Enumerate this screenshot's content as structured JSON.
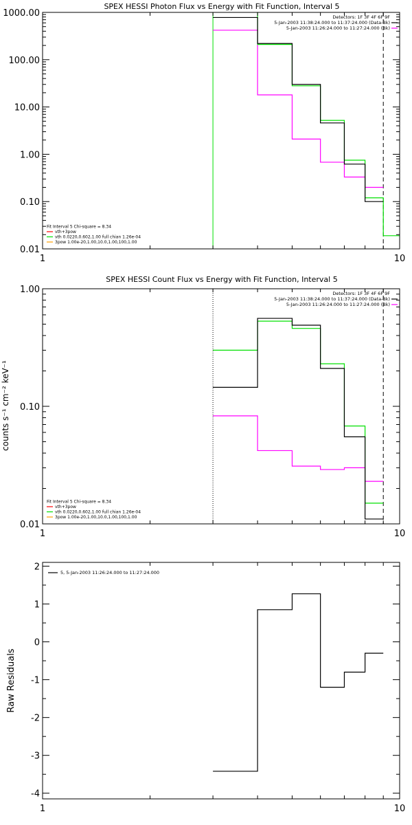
{
  "colors": {
    "black": "#000000",
    "magenta": "#ff00ff",
    "green": "#00e000",
    "red": "#ff0000",
    "yellow": "#ffa000"
  },
  "chart_data": [
    {
      "type": "line",
      "title": "SPEX HESSI Photon Flux vs Energy with Fit Function, Interval 5",
      "ylabel": "",
      "xscale": "log",
      "yscale": "log",
      "xlim": [
        1,
        10
      ],
      "ylim": [
        0.01,
        1000
      ],
      "xticks": [
        1,
        10
      ],
      "xtick_labels": [
        "1",
        "10"
      ],
      "yticks": [
        0.01,
        0.1,
        1,
        10,
        100,
        1000
      ],
      "ytick_labels": [
        "0.01",
        "0.10",
        "1.00",
        "10.00",
        "100.00",
        "1000.00"
      ],
      "grid": false,
      "legend_top": [
        "Detectors: 1F 3F 4F 6F 9F",
        "5-Jan-2003 11:38:24.000 to 11:37:24.000 (Data-Bk)",
        "5-Jan-2003 11:26:24.000 to 11:27:24.000 (Bk)"
      ],
      "legend_top_colors": [
        "none",
        "#000000",
        "#ff00ff"
      ],
      "legend_bottom": [
        "Fit Interval 5   Chi-square = 8.34",
        "vth+3pow",
        "vth 0.0220,0.602,1.00  full chian 1.26e-04",
        "3pow 1.00e-20,1.00,10.0,1.00,100,1.00"
      ],
      "legend_bottom_colors": [
        "none",
        "#ff0000",
        "#00e000",
        "#ffa000"
      ],
      "bin_edges": [
        3,
        4,
        5,
        6,
        7,
        8,
        9,
        10
      ],
      "series": [
        {
          "name": "5-Jan-2003 11:38:24.000 to 11:37:24.000 (Data-Bk)",
          "color": "#000000",
          "values": [
            780,
            220,
            30,
            4.6,
            0.62,
            0.1,
            null
          ]
        },
        {
          "name": "vth 0.0220,0.602,1.00  full chian 1.26e-04",
          "color": "#00e000",
          "values": [
            1400,
            210,
            28,
            5.2,
            0.75,
            0.12,
            0.019
          ]
        },
        {
          "name": "5-Jan-2003 11:26:24.000 to 11:27:24.000 (Bk)",
          "color": "#ff00ff",
          "values": [
            420,
            18,
            2.1,
            0.68,
            0.33,
            0.2,
            null
          ]
        }
      ],
      "vlines": [
        {
          "x": 3,
          "color": "#00e000",
          "style": "solid"
        },
        {
          "x": 9,
          "color": "#000000",
          "style": "dashed"
        }
      ]
    },
    {
      "type": "line",
      "title": "SPEX HESSI Count Flux vs Energy with Fit Function, Interval 5",
      "ylabel": "counts s⁻¹ cm⁻² keV⁻¹",
      "xscale": "log",
      "yscale": "log",
      "xlim": [
        1,
        10
      ],
      "ylim": [
        0.01,
        1
      ],
      "xticks": [
        1,
        10
      ],
      "xtick_labels": [
        "1",
        "10"
      ],
      "yticks": [
        0.01,
        0.1,
        1
      ],
      "ytick_labels": [
        "0.01",
        "0.10",
        "1.00"
      ],
      "grid": false,
      "legend_top": [
        "Detectors: 1F 3F 4F 6F 9F",
        "5-Jan-2003 11:38:24.000 to 11:37:24.000 (Data-Bk)",
        "5-Jan-2003 11:26:24.000 to 11:27:24.000 (Bk)"
      ],
      "legend_top_colors": [
        "none",
        "#000000",
        "#ff00ff"
      ],
      "legend_bottom": [
        "Fit Interval 5   Chi-square = 8.34",
        "vth+3pow",
        "vth 0.0220,0.602,1.00  full chian 1.26e-04",
        "3pow 1.00e-20,1.00,10.0,1.00,100,1.00"
      ],
      "legend_bottom_colors": [
        "none",
        "#ff0000",
        "#00e000",
        "#ffa000"
      ],
      "bin_edges": [
        3,
        4,
        5,
        6,
        7,
        8,
        9
      ],
      "series": [
        {
          "name": "5-Jan-2003 11:38:24.000 to 11:37:24.000 (Data-Bk)",
          "color": "#000000",
          "values": [
            0.145,
            0.56,
            0.49,
            0.21,
            0.055,
            0.011
          ]
        },
        {
          "name": "vth 0.0220,0.602,1.00  full chian 1.26e-04",
          "color": "#00e000",
          "values": [
            0.3,
            0.53,
            0.46,
            0.23,
            0.068,
            0.015
          ]
        },
        {
          "name": "5-Jan-2003 11:26:24.000 to 11:27:24.000 (Bk)",
          "color": "#ff00ff",
          "values": [
            0.083,
            0.042,
            0.031,
            0.029,
            0.03,
            0.023
          ]
        }
      ],
      "vlines": [
        {
          "x": 3,
          "color": "#000000",
          "style": "dotted"
        },
        {
          "x": 9,
          "color": "#000000",
          "style": "dashed"
        }
      ]
    },
    {
      "type": "line",
      "title": "",
      "ylabel": "Raw Residuals",
      "xscale": "log",
      "yscale": "linear",
      "xlim": [
        1,
        10
      ],
      "ylim": [
        -4.15,
        2.1
      ],
      "xticks": [
        1,
        10
      ],
      "xtick_labels": [
        "1",
        "10"
      ],
      "yticks": [
        -4,
        -3,
        -2,
        -1,
        0,
        1,
        2
      ],
      "ytick_labels": [
        "-4",
        "-3",
        "-2",
        "-1",
        "0",
        "1",
        "2"
      ],
      "grid": false,
      "legend_top": [
        "5,  5-Jan-2003 11:26:24.000 to 11:27:24.000"
      ],
      "legend_top_colors": [
        "#000000"
      ],
      "bin_edges": [
        3,
        4,
        5,
        6,
        7,
        8,
        9
      ],
      "series": [
        {
          "name": "5,  5-Jan-2003 11:26:24.000 to 11:27:24.000",
          "color": "#000000",
          "values": [
            -3.42,
            0.85,
            1.27,
            -1.2,
            -0.8,
            -0.3
          ]
        }
      ],
      "vlines": []
    }
  ]
}
